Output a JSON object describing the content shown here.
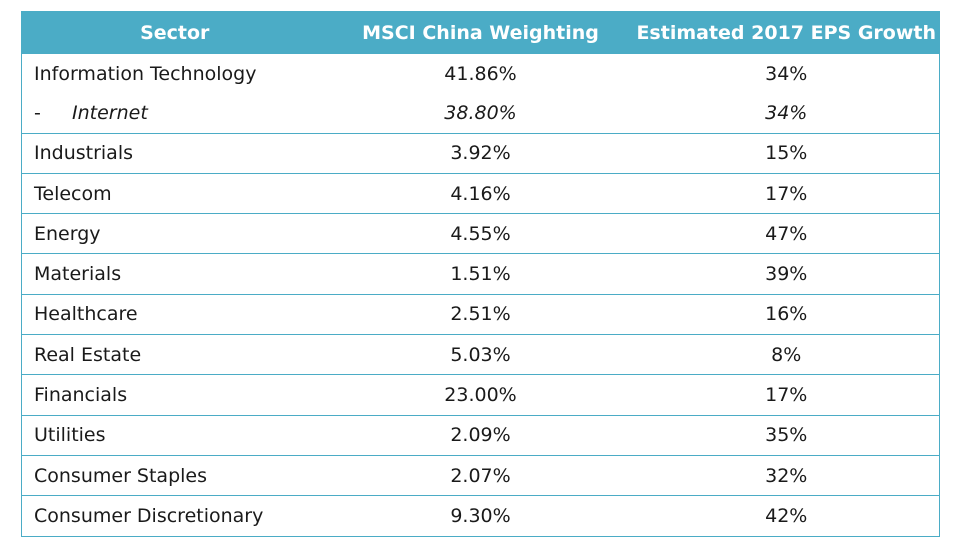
{
  "chart_data": {
    "type": "table",
    "columns": [
      "Sector",
      "MSCI China Weighting",
      "Estimated 2017 EPS Growth"
    ],
    "rows": [
      {
        "sector": "Information Technology",
        "weighting": "41.86%",
        "eps_growth": "34%"
      },
      {
        "sector": "Internet",
        "prefix": "-",
        "weighting": "38.80%",
        "eps_growth": "34%",
        "sub": true
      },
      {
        "sector": "Industrials",
        "weighting": "3.92%",
        "eps_growth": "15%"
      },
      {
        "sector": "Telecom",
        "weighting": "4.16%",
        "eps_growth": "17%"
      },
      {
        "sector": "Energy",
        "weighting": "4.55%",
        "eps_growth": "47%"
      },
      {
        "sector": "Materials",
        "weighting": "1.51%",
        "eps_growth": "39%"
      },
      {
        "sector": "Healthcare",
        "weighting": "2.51%",
        "eps_growth": "16%"
      },
      {
        "sector": "Real Estate",
        "weighting": "5.03%",
        "eps_growth": "8%"
      },
      {
        "sector": "Financials",
        "weighting": "23.00%",
        "eps_growth": "17%"
      },
      {
        "sector": "Utilities",
        "weighting": "2.09%",
        "eps_growth": "35%"
      },
      {
        "sector": "Consumer Staples",
        "weighting": "2.07%",
        "eps_growth": "32%"
      },
      {
        "sector": "Consumer Discretionary",
        "weighting": "9.30%",
        "eps_growth": "42%"
      }
    ]
  },
  "colors": {
    "header_background": "#4bacc6",
    "header_text": "#ffffff",
    "grid_line": "#4bacc6",
    "body_text": "#1a1a1a"
  }
}
